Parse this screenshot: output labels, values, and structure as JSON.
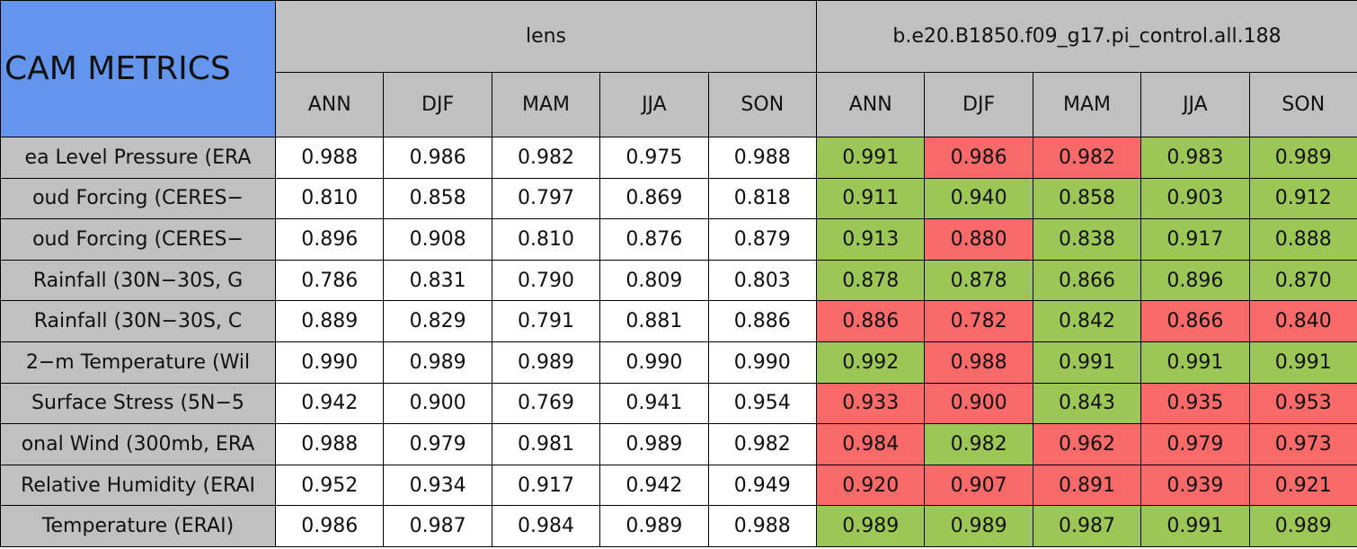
{
  "table": {
    "corner": "CAM METRICS",
    "groups": [
      {
        "title": "lens",
        "columns": [
          "ANN",
          "DJF",
          "MAM",
          "JJA",
          "SON"
        ]
      },
      {
        "title": "b.e20.B1850.f09_g17.pi_control.all.188",
        "columns": [
          "ANN",
          "DJF",
          "MAM",
          "JJA",
          "SON"
        ]
      }
    ],
    "header_color": "#c0c0c0",
    "corner_color": "#6495ed",
    "rows": [
      {
        "label": "ea Level Pressure (ERA",
        "values": [
          "0.988",
          "0.986",
          "0.982",
          "0.975",
          "0.988",
          "0.991",
          "0.986",
          "0.982",
          "0.983",
          "0.989"
        ],
        "colors": [
          "#ffffff",
          "#ffffff",
          "#ffffff",
          "#ffffff",
          "#ffffff",
          "#9cc757",
          "#f86a6a",
          "#f86a6a",
          "#9cc757",
          "#9cc757"
        ]
      },
      {
        "label": "oud Forcing (CERES−",
        "values": [
          "0.810",
          "0.858",
          "0.797",
          "0.869",
          "0.818",
          "0.911",
          "0.940",
          "0.858",
          "0.903",
          "0.912"
        ],
        "colors": [
          "#ffffff",
          "#ffffff",
          "#ffffff",
          "#ffffff",
          "#ffffff",
          "#9cc757",
          "#9cc757",
          "#9cc757",
          "#9cc757",
          "#9cc757"
        ]
      },
      {
        "label": "oud Forcing (CERES−",
        "values": [
          "0.896",
          "0.908",
          "0.810",
          "0.876",
          "0.879",
          "0.913",
          "0.880",
          "0.838",
          "0.917",
          "0.888"
        ],
        "colors": [
          "#ffffff",
          "#ffffff",
          "#ffffff",
          "#ffffff",
          "#ffffff",
          "#9cc757",
          "#f86a6a",
          "#9cc757",
          "#9cc757",
          "#9cc757"
        ]
      },
      {
        "label": "Rainfall (30N−30S, G",
        "values": [
          "0.786",
          "0.831",
          "0.790",
          "0.809",
          "0.803",
          "0.878",
          "0.878",
          "0.866",
          "0.896",
          "0.870"
        ],
        "colors": [
          "#ffffff",
          "#ffffff",
          "#ffffff",
          "#ffffff",
          "#ffffff",
          "#9cc757",
          "#9cc757",
          "#9cc757",
          "#9cc757",
          "#9cc757"
        ]
      },
      {
        "label": "Rainfall (30N−30S, C",
        "values": [
          "0.889",
          "0.829",
          "0.791",
          "0.881",
          "0.886",
          "0.886",
          "0.782",
          "0.842",
          "0.866",
          "0.840"
        ],
        "colors": [
          "#ffffff",
          "#ffffff",
          "#ffffff",
          "#ffffff",
          "#ffffff",
          "#f86a6a",
          "#f86a6a",
          "#9cc757",
          "#f86a6a",
          "#f86a6a"
        ]
      },
      {
        "label": "2−m Temperature (Wil",
        "values": [
          "0.990",
          "0.989",
          "0.989",
          "0.990",
          "0.990",
          "0.992",
          "0.988",
          "0.991",
          "0.991",
          "0.991"
        ],
        "colors": [
          "#ffffff",
          "#ffffff",
          "#ffffff",
          "#ffffff",
          "#ffffff",
          "#9cc757",
          "#f86a6a",
          "#9cc757",
          "#9cc757",
          "#9cc757"
        ]
      },
      {
        "label": "Surface Stress (5N−5",
        "values": [
          "0.942",
          "0.900",
          "0.769",
          "0.941",
          "0.954",
          "0.933",
          "0.900",
          "0.843",
          "0.935",
          "0.953"
        ],
        "colors": [
          "#ffffff",
          "#ffffff",
          "#ffffff",
          "#ffffff",
          "#ffffff",
          "#f86a6a",
          "#f86a6a",
          "#9cc757",
          "#f86a6a",
          "#f86a6a"
        ]
      },
      {
        "label": "onal Wind (300mb, ERA",
        "values": [
          "0.988",
          "0.979",
          "0.981",
          "0.989",
          "0.982",
          "0.984",
          "0.982",
          "0.962",
          "0.979",
          "0.973"
        ],
        "colors": [
          "#ffffff",
          "#ffffff",
          "#ffffff",
          "#ffffff",
          "#ffffff",
          "#f86a6a",
          "#9cc757",
          "#f86a6a",
          "#f86a6a",
          "#f86a6a"
        ]
      },
      {
        "label": "Relative Humidity (ERAI",
        "values": [
          "0.952",
          "0.934",
          "0.917",
          "0.942",
          "0.949",
          "0.920",
          "0.907",
          "0.891",
          "0.939",
          "0.921"
        ],
        "colors": [
          "#ffffff",
          "#ffffff",
          "#ffffff",
          "#ffffff",
          "#ffffff",
          "#f86a6a",
          "#f86a6a",
          "#f86a6a",
          "#f86a6a",
          "#f86a6a"
        ]
      },
      {
        "label": "Temperature (ERAI)",
        "values": [
          "0.986",
          "0.987",
          "0.984",
          "0.989",
          "0.988",
          "0.989",
          "0.989",
          "0.987",
          "0.991",
          "0.989"
        ],
        "colors": [
          "#ffffff",
          "#ffffff",
          "#ffffff",
          "#ffffff",
          "#ffffff",
          "#9cc757",
          "#9cc757",
          "#9cc757",
          "#9cc757",
          "#9cc757"
        ]
      }
    ]
  }
}
